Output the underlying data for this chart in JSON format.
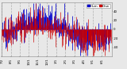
{
  "background_color": "#e8e8e8",
  "plot_bg_color": "#e8e8e8",
  "grid_color": "#aaaaaa",
  "bar_color_blue": "#0000cc",
  "bar_color_red": "#cc0000",
  "legend_blue_label": "Hum",
  "legend_red_label": "Dew",
  "ylim": [
    -60,
    60
  ],
  "n_points": 365,
  "seed": 42,
  "tick_fontsize": 2.8,
  "legend_fontsize": 3.0,
  "n_gridlines": 12
}
